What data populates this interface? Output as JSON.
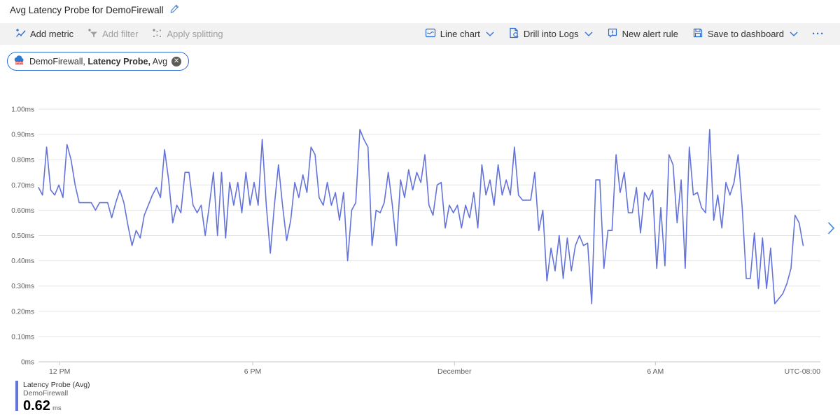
{
  "header": {
    "title": "Avg Latency Probe for DemoFirewall"
  },
  "toolbar": {
    "add_metric": "Add metric",
    "add_filter": "Add filter",
    "apply_splitting": "Apply splitting",
    "line_chart": "Line chart",
    "drill_into_logs": "Drill into Logs",
    "new_alert_rule": "New alert rule",
    "save_to_dashboard": "Save to dashboard",
    "more": "···"
  },
  "pill": {
    "resource": "DemoFirewall,",
    "metric": "Latency Probe,",
    "aggregation": "Avg"
  },
  "legend": {
    "metric_label": "Latency Probe (Avg)",
    "resource": "DemoFirewall",
    "value": "0.62",
    "unit": "ms"
  },
  "colors": {
    "line": "#6373d9",
    "icon_blue": "#2b6bd4",
    "toolbar_bg": "#f2f2f2",
    "text": "#323130",
    "disabled_text": "#a19f9d",
    "axis_text": "#605e5c",
    "gridline": "#e6e6e6",
    "axis_line": "#c8c6c4",
    "pill_border": "#2e6bd0",
    "next_chevron": "#3b83d6"
  },
  "chart_data": {
    "type": "line",
    "title": "Avg Latency Probe for DemoFirewall",
    "unit": "ms",
    "ylim": [
      0,
      1.0
    ],
    "y_tick_labels": [
      "1.00ms",
      "0.90ms",
      "0.80ms",
      "0.70ms",
      "0.60ms",
      "0.50ms",
      "0.40ms",
      "0.30ms",
      "0.20ms",
      "0.10ms",
      "0ms"
    ],
    "x_tick_labels": [
      "12 PM",
      "6 PM",
      "December",
      "6 AM"
    ],
    "x_tick_positions": [
      0.027,
      0.274,
      0.532,
      0.789
    ],
    "timezone_label": "UTC-08:00",
    "grid": "horizontal",
    "legend_position": "bottom-left",
    "x_extent": 0.978,
    "series": [
      {
        "name": "Latency Probe (Avg)",
        "resource": "DemoFirewall",
        "aggregation": "Avg",
        "display_average": "0.62 ms",
        "color": "#6373d9",
        "values": [
          0.69,
          0.66,
          0.85,
          0.68,
          0.66,
          0.7,
          0.65,
          0.86,
          0.8,
          0.7,
          0.63,
          0.63,
          0.63,
          0.63,
          0.6,
          0.63,
          0.63,
          0.63,
          0.57,
          0.63,
          0.68,
          0.63,
          0.54,
          0.46,
          0.52,
          0.49,
          0.58,
          0.62,
          0.66,
          0.69,
          0.65,
          0.84,
          0.72,
          0.55,
          0.62,
          0.59,
          0.75,
          0.75,
          0.62,
          0.59,
          0.62,
          0.5,
          0.62,
          0.75,
          0.5,
          0.75,
          0.49,
          0.71,
          0.62,
          0.71,
          0.59,
          0.75,
          0.62,
          0.71,
          0.62,
          0.88,
          0.62,
          0.43,
          0.62,
          0.78,
          0.62,
          0.48,
          0.56,
          0.71,
          0.65,
          0.74,
          0.67,
          0.85,
          0.82,
          0.65,
          0.62,
          0.71,
          0.62,
          0.67,
          0.56,
          0.67,
          0.4,
          0.6,
          0.63,
          0.92,
          0.88,
          0.85,
          0.46,
          0.6,
          0.59,
          0.63,
          0.75,
          0.62,
          0.46,
          0.72,
          0.65,
          0.76,
          0.68,
          0.75,
          0.71,
          0.82,
          0.62,
          0.58,
          0.7,
          0.71,
          0.53,
          0.62,
          0.59,
          0.62,
          0.53,
          0.62,
          0.57,
          0.67,
          0.53,
          0.78,
          0.66,
          0.72,
          0.62,
          0.78,
          0.66,
          0.72,
          0.66,
          0.85,
          0.66,
          0.64,
          0.64,
          0.64,
          0.75,
          0.52,
          0.6,
          0.32,
          0.45,
          0.36,
          0.5,
          0.33,
          0.49,
          0.36,
          0.46,
          0.5,
          0.46,
          0.47,
          0.23,
          0.72,
          0.72,
          0.37,
          0.52,
          0.52,
          0.82,
          0.67,
          0.75,
          0.59,
          0.59,
          0.69,
          0.51,
          0.67,
          0.64,
          0.68,
          0.37,
          0.61,
          0.38,
          0.82,
          0.78,
          0.55,
          0.72,
          0.37,
          0.85,
          0.66,
          0.67,
          0.61,
          0.59,
          0.92,
          0.56,
          0.66,
          0.53,
          0.71,
          0.66,
          0.71,
          0.82,
          0.61,
          0.33,
          0.33,
          0.51,
          0.29,
          0.49,
          0.29,
          0.45,
          0.23,
          0.25,
          0.27,
          0.31,
          0.37,
          0.58,
          0.55,
          0.46
        ]
      }
    ]
  }
}
